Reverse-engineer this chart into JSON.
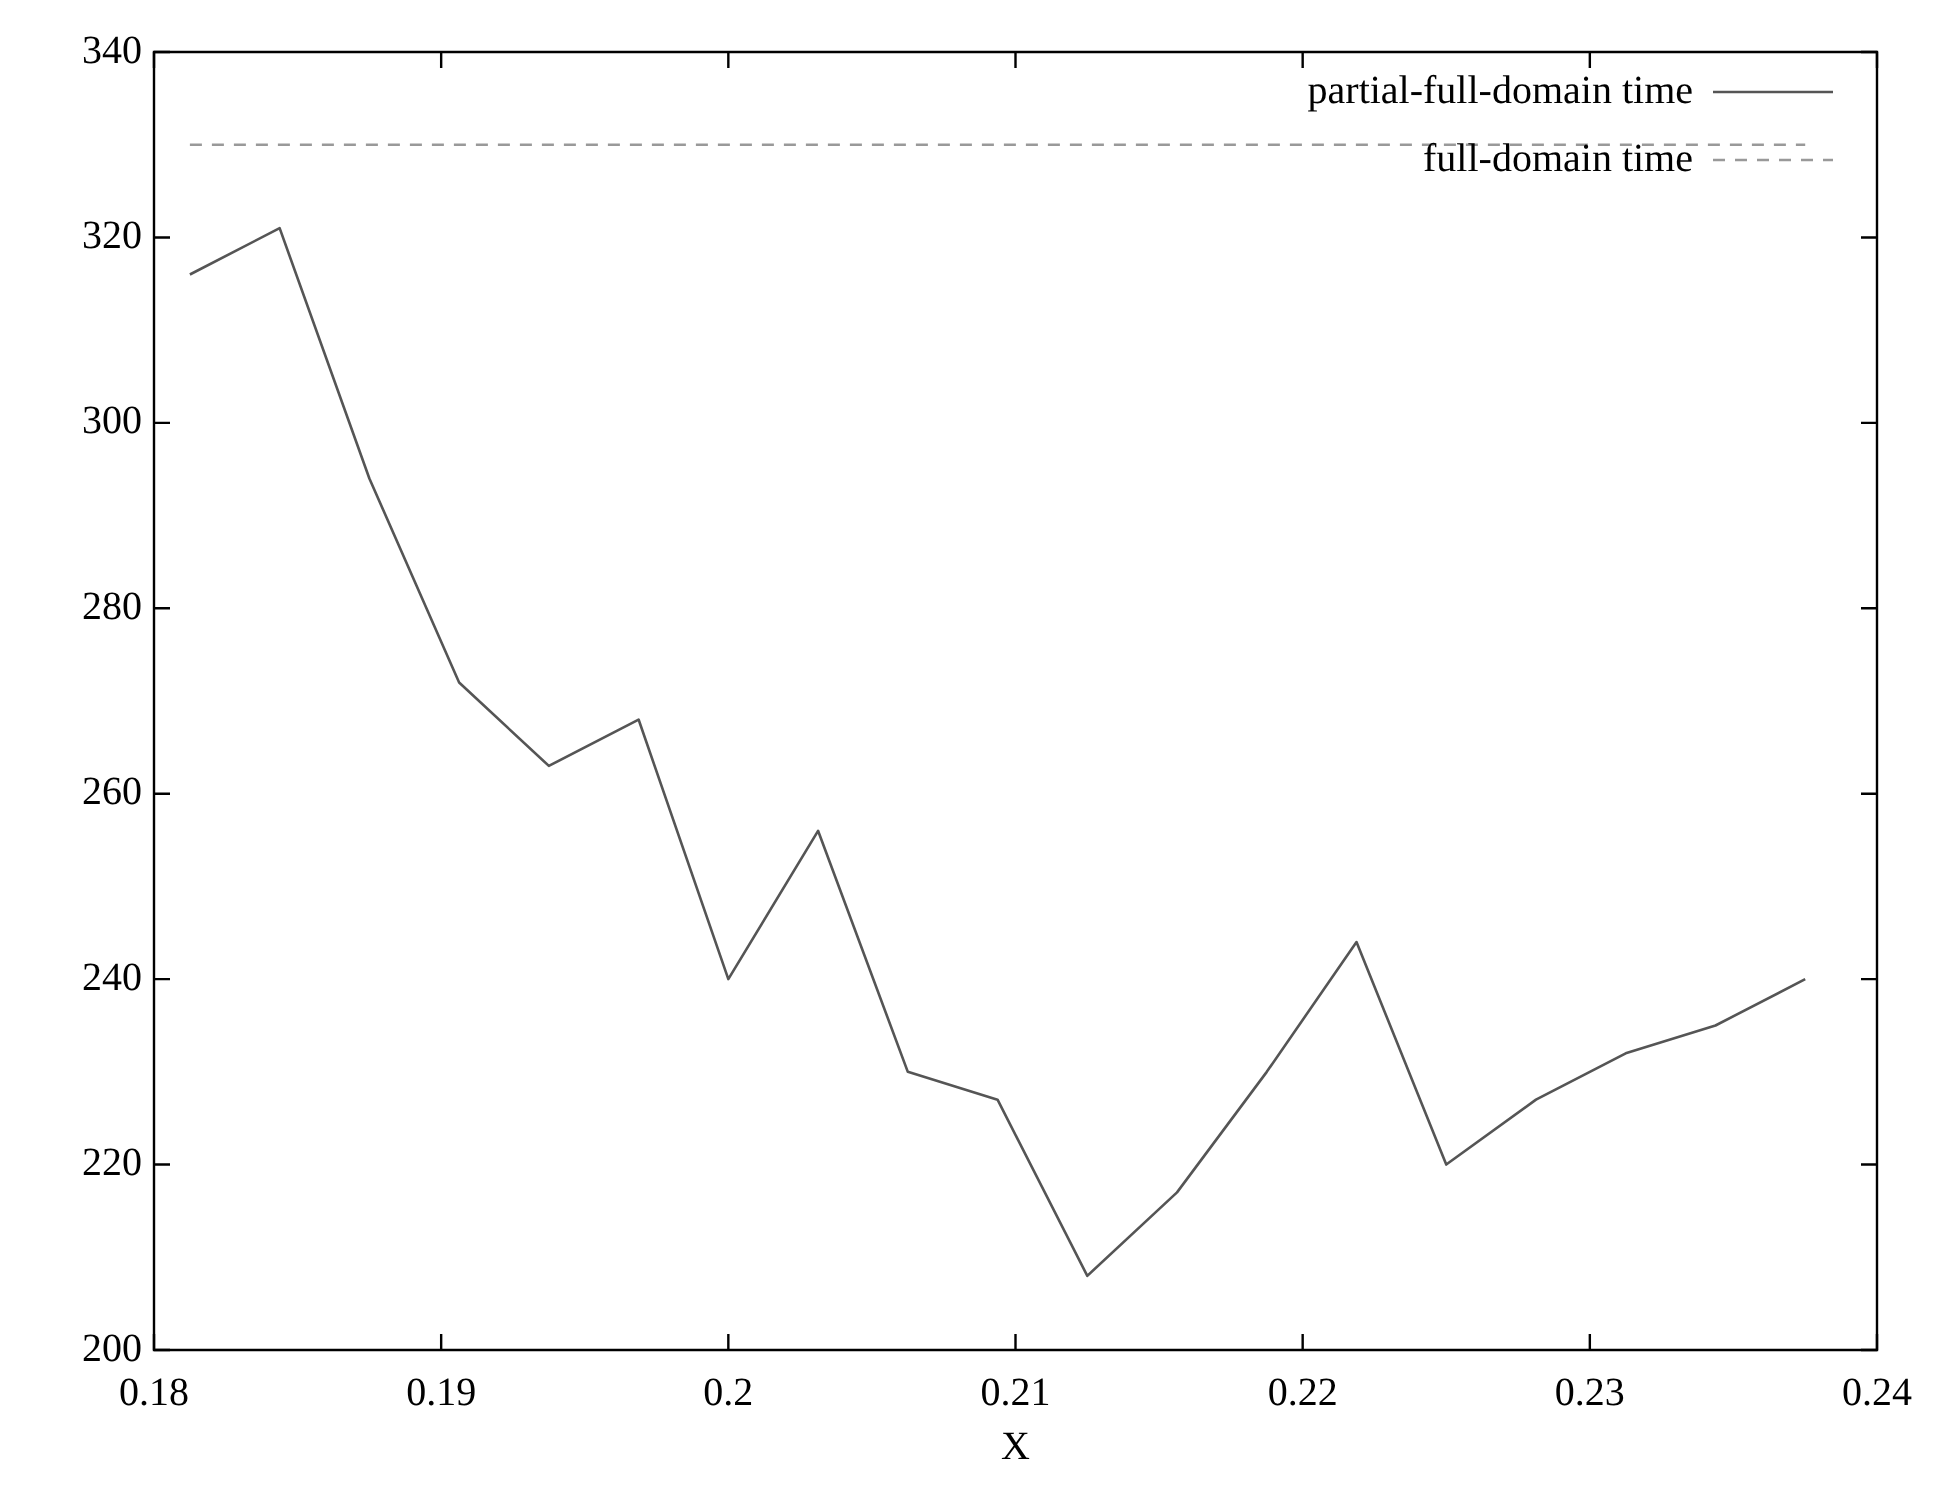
{
  "chart_data": {
    "type": "line",
    "xlabel": "X",
    "xlim": [
      0.18,
      0.24
    ],
    "xticks": [
      0.18,
      0.19,
      0.2,
      0.21,
      0.22,
      0.23,
      0.24
    ],
    "ylim": [
      200,
      340
    ],
    "yticks": [
      200,
      220,
      240,
      260,
      280,
      300,
      320,
      340
    ],
    "grid": false,
    "legend": "top right",
    "marker": "none",
    "series": [
      {
        "name": "partial-full-domain time",
        "color": "#555555",
        "line_style": "solid",
        "x": [
          0.18125,
          0.184375,
          0.1875,
          0.190625,
          0.19375,
          0.196875,
          0.2,
          0.203125,
          0.20625,
          0.209375,
          0.2125,
          0.215625,
          0.21875,
          0.221875,
          0.225,
          0.228125,
          0.23125,
          0.234375,
          0.2375
        ],
        "values": [
          316,
          321,
          294,
          272,
          263,
          268,
          240,
          256,
          230,
          227,
          208,
          217,
          230,
          244,
          220,
          227,
          232,
          235,
          240
        ]
      },
      {
        "name": "full-domain time",
        "color": "#999999",
        "line_style": "dashed",
        "x": [
          0.18125,
          0.2375
        ],
        "values": [
          330,
          330
        ]
      }
    ]
  }
}
